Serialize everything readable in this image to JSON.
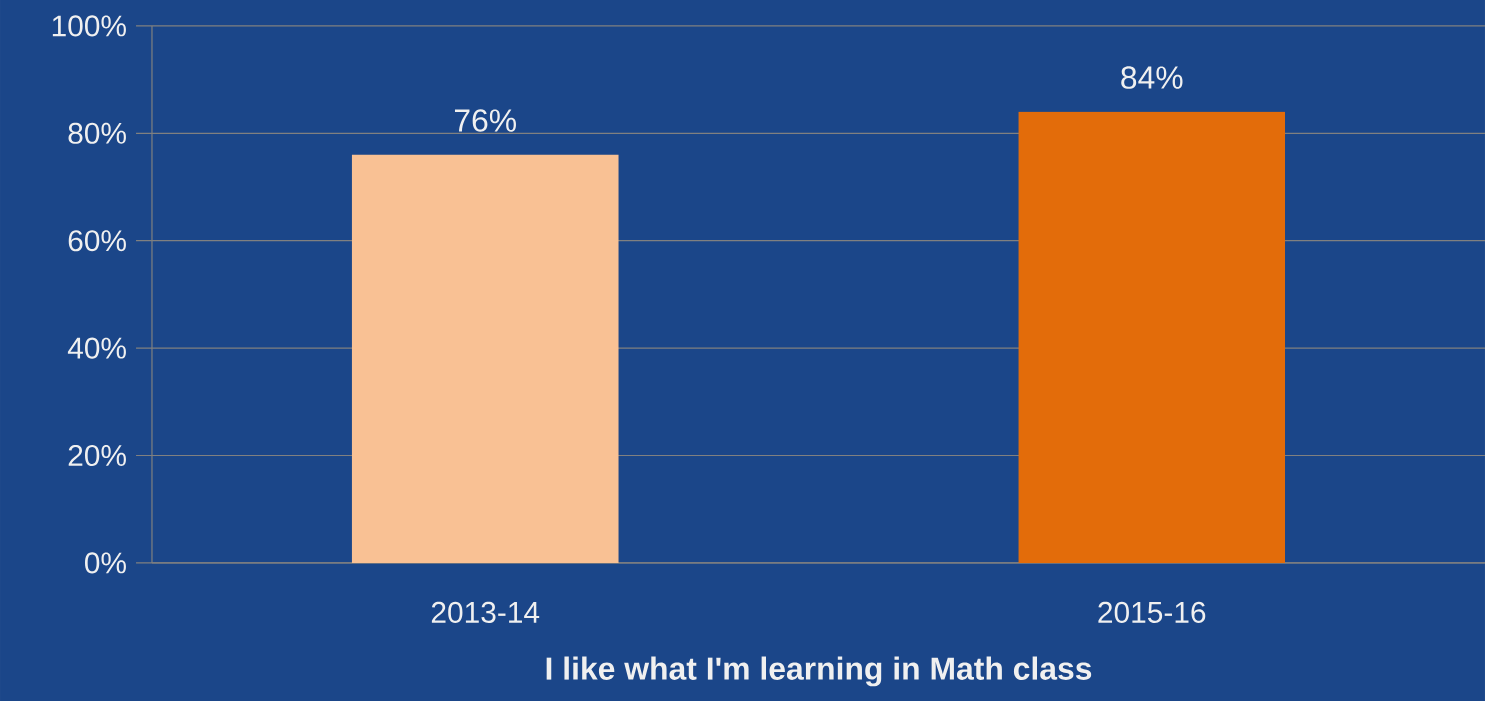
{
  "chart_data": {
    "type": "bar",
    "xlabel": "I like what I'm learning in Math class",
    "categories": [
      "2013-14",
      "2015-16"
    ],
    "values": [
      76,
      84
    ],
    "colors": [
      "#f9c194",
      "#e36c0a"
    ],
    "value_labels": [
      "76%",
      "84%"
    ],
    "ylim": [
      0,
      100
    ],
    "yticks": [
      {
        "value": 0,
        "label": "0%"
      },
      {
        "value": 20,
        "label": "20%"
      },
      {
        "value": 40,
        "label": "40%"
      },
      {
        "value": 60,
        "label": "60%"
      },
      {
        "value": 80,
        "label": "80%"
      },
      {
        "value": 100,
        "label": "100%"
      }
    ],
    "grid": "y"
  }
}
